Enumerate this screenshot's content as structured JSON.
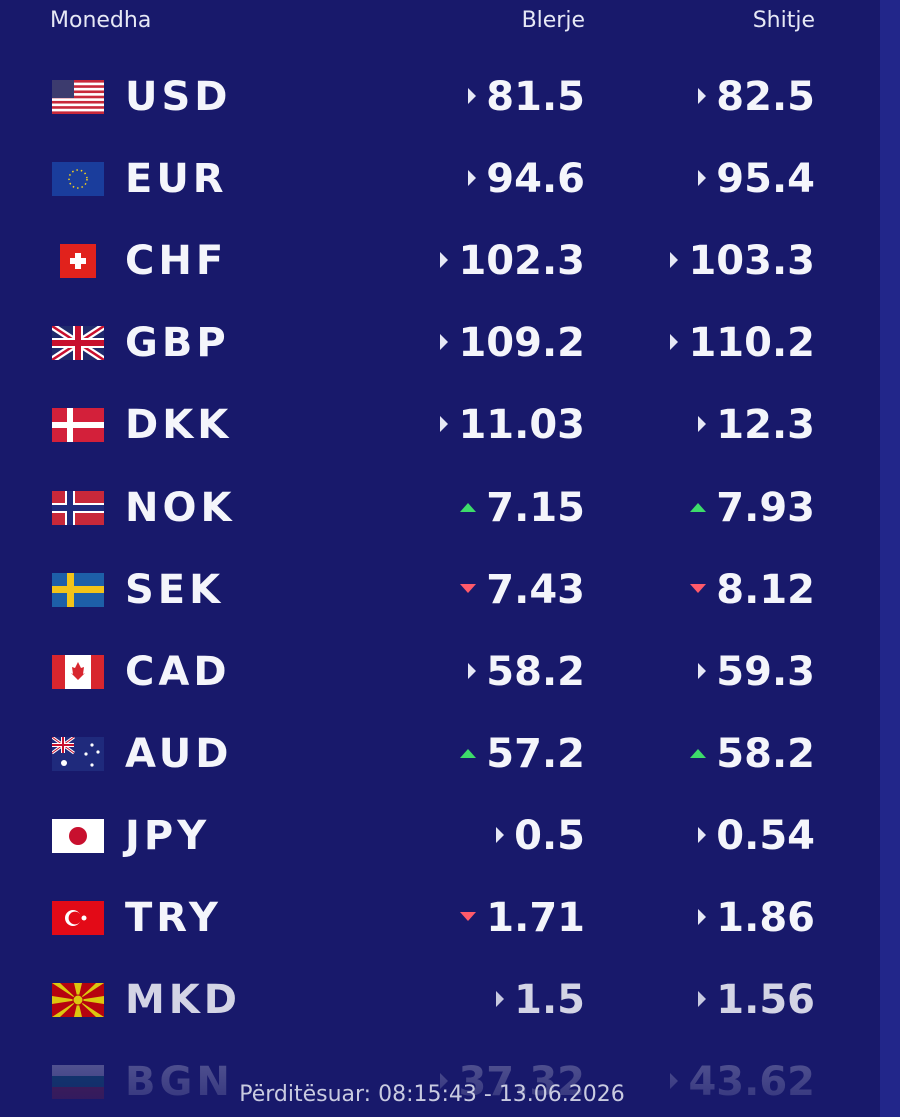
{
  "header": {
    "currency": "Monedha",
    "buy": "Blerje",
    "sell": "Shitje"
  },
  "rows": [
    {
      "code": "USD",
      "buy": "81.5",
      "sell": "82.5",
      "buy_trend": "flat",
      "sell_trend": "flat"
    },
    {
      "code": "EUR",
      "buy": "94.6",
      "sell": "95.4",
      "buy_trend": "flat",
      "sell_trend": "flat"
    },
    {
      "code": "CHF",
      "buy": "102.3",
      "sell": "103.3",
      "buy_trend": "flat",
      "sell_trend": "flat"
    },
    {
      "code": "GBP",
      "buy": "109.2",
      "sell": "110.2",
      "buy_trend": "flat",
      "sell_trend": "flat"
    },
    {
      "code": "DKK",
      "buy": "11.03",
      "sell": "12.3",
      "buy_trend": "flat",
      "sell_trend": "flat"
    },
    {
      "code": "NOK",
      "buy": "7.15",
      "sell": "7.93",
      "buy_trend": "up",
      "sell_trend": "up"
    },
    {
      "code": "SEK",
      "buy": "7.43",
      "sell": "8.12",
      "buy_trend": "down",
      "sell_trend": "down"
    },
    {
      "code": "CAD",
      "buy": "58.2",
      "sell": "59.3",
      "buy_trend": "flat",
      "sell_trend": "flat"
    },
    {
      "code": "AUD",
      "buy": "57.2",
      "sell": "58.2",
      "buy_trend": "up",
      "sell_trend": "up"
    },
    {
      "code": "JPY",
      "buy": "0.5",
      "sell": "0.54",
      "buy_trend": "flat",
      "sell_trend": "flat"
    },
    {
      "code": "TRY",
      "buy": "1.71",
      "sell": "1.86",
      "buy_trend": "down",
      "sell_trend": "flat"
    },
    {
      "code": "MKD",
      "buy": "1.5",
      "sell": "1.56",
      "buy_trend": "flat",
      "sell_trend": "flat"
    },
    {
      "code": "BGN",
      "buy": "37.32",
      "sell": "43.62",
      "buy_trend": "flat",
      "sell_trend": "flat"
    }
  ],
  "footer": "Përditësuar: 08:15:43 - 13.06.2026"
}
